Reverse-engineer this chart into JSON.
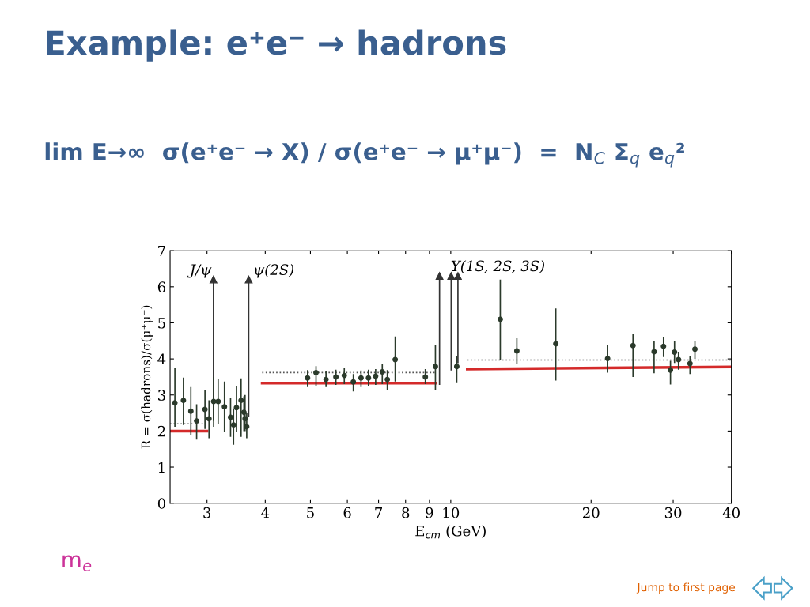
{
  "chart_data": {
    "type": "scatter",
    "title": "Example: e⁺e⁻ → hadrons",
    "subtitle": "lim E→∞  σ(e⁺e⁻ → X) / σ(e⁺e⁻ → μ⁺μ⁻)  =  N$_{C}$ Σ$_{q}$ e$_{q}$²",
    "xlabel": "E$_{cm}$ (GeV)",
    "ylabel": "R = σ(hadrons)/σ(μ⁺μ⁻)",
    "log": "x",
    "xlim": [
      2.5,
      40
    ],
    "xticks": [
      3,
      4,
      5,
      6,
      7,
      8,
      9,
      10,
      20,
      30,
      40
    ],
    "ylim": [
      0,
      7
    ],
    "yticks": [
      0,
      1,
      2,
      3,
      4,
      5,
      6,
      7
    ],
    "grid": false,
    "legend": false,
    "marker": "circle",
    "series": [
      {
        "color": "#2b3a2b",
        "x": [
          2.56,
          2.67,
          2.77,
          2.85,
          2.97,
          3.03,
          3.1,
          3.17,
          3.27,
          3.37,
          3.42,
          3.47,
          3.55,
          3.6,
          3.62,
          3.65,
          4.93,
          5.14,
          5.4,
          5.67,
          5.91,
          6.18,
          6.42,
          6.66,
          6.9,
          7.13,
          7.31,
          7.6,
          8.82,
          9.27,
          10.3,
          12.77,
          13.86,
          16.8,
          21.7,
          24.6,
          27.3,
          28.6,
          29.6,
          30.2,
          30.8,
          32.6,
          33.4
        ],
        "values": [
          2.78,
          2.85,
          2.55,
          2.28,
          2.6,
          2.34,
          2.82,
          2.82,
          2.67,
          2.38,
          2.17,
          2.65,
          2.85,
          2.52,
          2.34,
          2.12,
          3.47,
          3.62,
          3.43,
          3.5,
          3.54,
          3.36,
          3.47,
          3.47,
          3.52,
          3.64,
          3.43,
          3.98,
          3.5,
          3.79,
          3.79,
          5.1,
          4.22,
          4.42,
          4.01,
          4.37,
          4.2,
          4.35,
          3.69,
          4.19,
          3.98,
          3.87,
          4.27
        ],
        "errors": [
          [
            2.12,
            3.76
          ],
          [
            2.17,
            3.48
          ],
          [
            1.9,
            3.22
          ],
          [
            1.76,
            2.74
          ],
          [
            2.06,
            3.15
          ],
          [
            1.8,
            2.85
          ],
          [
            2.12,
            3.5
          ],
          [
            2.2,
            3.43
          ],
          [
            1.97,
            3.37
          ],
          [
            1.84,
            2.93
          ],
          [
            1.62,
            2.63
          ],
          [
            1.97,
            3.25
          ],
          [
            1.84,
            3.46
          ],
          [
            2.0,
            2.96
          ],
          [
            2.0,
            3.0
          ],
          [
            1.8,
            2.5
          ],
          [
            3.22,
            3.69
          ],
          [
            3.26,
            3.8
          ],
          [
            3.22,
            3.65
          ],
          [
            3.28,
            3.7
          ],
          [
            3.3,
            3.76
          ],
          [
            3.1,
            3.58
          ],
          [
            3.22,
            3.68
          ],
          [
            3.25,
            3.7
          ],
          [
            3.28,
            3.72
          ],
          [
            3.3,
            3.87
          ],
          [
            3.15,
            3.69
          ],
          [
            3.37,
            4.62
          ],
          [
            3.3,
            3.72
          ],
          [
            3.15,
            4.38
          ],
          [
            3.35,
            4.09
          ],
          [
            3.98,
            6.2
          ],
          [
            3.87,
            4.57
          ],
          [
            3.4,
            5.4
          ],
          [
            3.62,
            4.38
          ],
          [
            3.5,
            4.68
          ],
          [
            3.6,
            4.5
          ],
          [
            4.05,
            4.6
          ],
          [
            3.29,
            3.95
          ],
          [
            3.89,
            4.5
          ],
          [
            3.7,
            4.2
          ],
          [
            3.58,
            4.08
          ],
          [
            4.0,
            4.5
          ]
        ]
      },
      {
        "type": "line",
        "color": "#d42a2a",
        "marker": "none",
        "line_style": "solid",
        "x": [
          2.5,
          3.0
        ],
        "values": [
          2.0,
          2.0
        ]
      },
      {
        "type": "line",
        "color": "#d42a2a",
        "marker": "none",
        "line_style": "solid",
        "x": [
          3.94,
          9.3
        ],
        "values": [
          3.33,
          3.33
        ]
      },
      {
        "type": "line",
        "color": "#d42a2a",
        "marker": "none",
        "line_style": "solid",
        "x": [
          10.85,
          40
        ],
        "values": [
          3.72,
          3.78
        ]
      },
      {
        "type": "line",
        "color": "#555555",
        "marker": "none",
        "line_style": "dotted",
        "x": [
          2.5,
          3.0
        ],
        "values": [
          2.2,
          2.2
        ]
      },
      {
        "type": "line",
        "color": "#555555",
        "marker": "none",
        "line_style": "dotted",
        "x": [
          3.94,
          9.3
        ],
        "values": [
          3.62,
          3.62
        ]
      },
      {
        "type": "line",
        "color": "#555555",
        "marker": "none",
        "line_style": "dotted",
        "x": [
          10.85,
          40
        ],
        "values": [
          3.97,
          3.97
        ]
      },
      {
        "type": "line",
        "color": "#333333",
        "marker": "triangle",
        "line_style": "solid",
        "x": [
          3.097,
          3.097
        ],
        "values": [
          2.3,
          6.2
        ]
      },
      {
        "type": "line",
        "color": "#333333",
        "marker": "triangle",
        "line_style": "solid",
        "x": [
          3.686,
          3.686
        ],
        "values": [
          2.4,
          6.2
        ]
      },
      {
        "type": "line",
        "color": "#333333",
        "marker": "triangle",
        "line_style": "solid",
        "x": [
          9.46,
          9.46
        ],
        "values": [
          3.3,
          6.3
        ]
      },
      {
        "type": "line",
        "color": "#333333",
        "marker": "triangle",
        "line_style": "solid",
        "x": [
          10.02,
          10.02
        ],
        "values": [
          3.7,
          6.3
        ]
      },
      {
        "type": "line",
        "color": "#333333",
        "marker": "triangle",
        "line_style": "solid",
        "x": [
          10.36,
          10.36
        ],
        "values": [
          3.9,
          6.3
        ]
      }
    ],
    "annotations": [
      "J/ψ",
      "ψ(2S)",
      "Υ(1S, 2S, 3S)",
      "m$_{e}$",
      "Jump to first page"
    ]
  }
}
